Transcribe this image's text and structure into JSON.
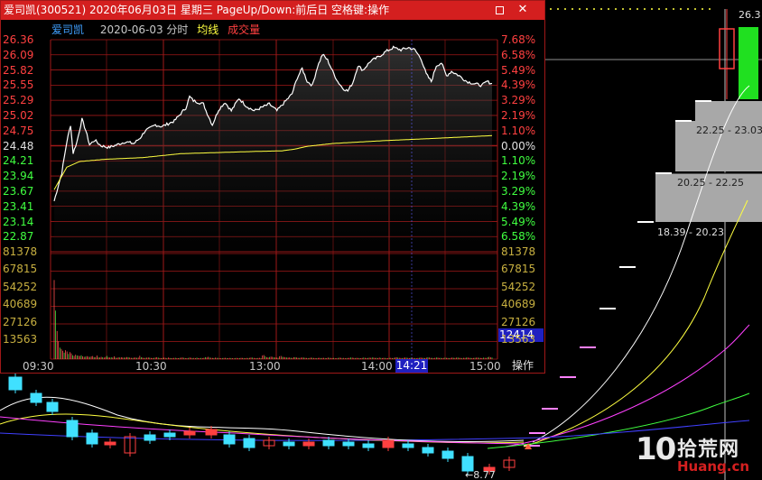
{
  "window": {
    "title": "爱司凯(300521) 2020年06月03日 星期三 PageUp/Down:前后日 空格键:操作",
    "restore_glyph": "",
    "close_glyph": "✕"
  },
  "legend": {
    "name": "爱司凯",
    "date": "2020-06-03 分时",
    "avg_label": "均线",
    "vol_label": "成交量"
  },
  "price_axis": {
    "prices": [
      "26.36",
      "26.09",
      "25.82",
      "25.55",
      "25.29",
      "25.02",
      "24.75",
      "24.48",
      "24.21",
      "23.94",
      "23.67",
      "23.41",
      "23.14",
      "22.87"
    ],
    "percents": [
      "7.68%",
      "6.58%",
      "5.49%",
      "4.39%",
      "3.29%",
      "2.19%",
      "1.10%",
      "0.00%",
      "1.10%",
      "2.19%",
      "3.29%",
      "4.39%",
      "5.49%",
      "6.58%"
    ],
    "base_price": 24.48
  },
  "volume_axis": {
    "labels": [
      "81378",
      "67815",
      "54252",
      "40689",
      "27126",
      "13563"
    ]
  },
  "time_axis": {
    "labels": [
      "09:30",
      "10:30",
      "13:00",
      "14:00",
      "15:00"
    ],
    "cursor_time": "14:21"
  },
  "cursor_value": "12414",
  "operate_button": "操作",
  "intraday": {
    "price_keypoints": [
      [
        0,
        23.5
      ],
      [
        3,
        23.75
      ],
      [
        6,
        24.0
      ],
      [
        10,
        24.55
      ],
      [
        13,
        24.85
      ],
      [
        15,
        24.35
      ],
      [
        18,
        24.55
      ],
      [
        22,
        24.95
      ],
      [
        25,
        24.75
      ],
      [
        28,
        24.5
      ],
      [
        32,
        24.58
      ],
      [
        37,
        24.48
      ],
      [
        43,
        24.45
      ],
      [
        50,
        24.5
      ],
      [
        56,
        24.55
      ],
      [
        63,
        24.52
      ],
      [
        68,
        24.62
      ],
      [
        72,
        24.75
      ],
      [
        75,
        24.78
      ],
      [
        80,
        24.85
      ],
      [
        85,
        24.82
      ],
      [
        95,
        24.92
      ],
      [
        100,
        25.05
      ],
      [
        104,
        25.15
      ],
      [
        107,
        25.35
      ],
      [
        110,
        25.28
      ],
      [
        114,
        25.25
      ],
      [
        118,
        25.22
      ],
      [
        120,
        25.1
      ],
      [
        125,
        24.85
      ],
      [
        130,
        25.12
      ],
      [
        135,
        25.25
      ],
      [
        140,
        25.1
      ],
      [
        146,
        25.32
      ],
      [
        152,
        25.18
      ],
      [
        158,
        25.1
      ],
      [
        163,
        25.15
      ],
      [
        170,
        25.22
      ],
      [
        176,
        25.1
      ],
      [
        182,
        25.25
      ],
      [
        188,
        25.4
      ],
      [
        192,
        25.68
      ],
      [
        196,
        25.85
      ],
      [
        200,
        25.62
      ],
      [
        204,
        25.55
      ],
      [
        208,
        25.88
      ],
      [
        212,
        26.1
      ],
      [
        216,
        26.0
      ],
      [
        220,
        25.8
      ],
      [
        224,
        25.62
      ],
      [
        228,
        25.5
      ],
      [
        232,
        25.45
      ],
      [
        236,
        25.6
      ],
      [
        240,
        25.9
      ],
      [
        244,
        25.82
      ],
      [
        250,
        25.98
      ],
      [
        256,
        26.05
      ],
      [
        262,
        26.15
      ],
      [
        268,
        26.22
      ],
      [
        274,
        26.18
      ],
      [
        280,
        26.22
      ],
      [
        285,
        26.18
      ],
      [
        290,
        26.02
      ],
      [
        294,
        25.75
      ],
      [
        298,
        25.62
      ],
      [
        302,
        25.9
      ],
      [
        306,
        25.95
      ],
      [
        310,
        25.72
      ],
      [
        314,
        25.8
      ],
      [
        320,
        25.72
      ],
      [
        326,
        25.62
      ],
      [
        332,
        25.58
      ],
      [
        338,
        25.55
      ],
      [
        342,
        25.62
      ],
      [
        346,
        25.58
      ]
    ],
    "avg_keypoints": [
      [
        0,
        23.7
      ],
      [
        5,
        23.9
      ],
      [
        10,
        24.1
      ],
      [
        20,
        24.2
      ],
      [
        40,
        24.24
      ],
      [
        70,
        24.27
      ],
      [
        100,
        24.34
      ],
      [
        130,
        24.36
      ],
      [
        160,
        24.38
      ],
      [
        180,
        24.39
      ],
      [
        190,
        24.42
      ],
      [
        200,
        24.47
      ],
      [
        220,
        24.52
      ],
      [
        260,
        24.57
      ],
      [
        300,
        24.61
      ],
      [
        346,
        24.66
      ]
    ],
    "volumes": [
      62000,
      38000,
      22000,
      14000,
      9000,
      8000,
      6500,
      5000,
      7000,
      6000,
      4000,
      5500,
      4500,
      3000,
      2500,
      3500,
      2800,
      2600,
      2400,
      3000,
      2200,
      1800,
      2000,
      2300,
      1900,
      1700,
      2100,
      2400,
      1500,
      1600,
      2800,
      1400,
      1300,
      1800,
      1500,
      1200,
      1700,
      2500,
      1400,
      1300,
      1500,
      1200,
      2200,
      1100,
      1000,
      1400,
      1300,
      1500,
      1200,
      1100,
      1300,
      1600,
      1400,
      1200,
      1000,
      900,
      1100,
      1300,
      1000,
      1200,
      2600,
      1400,
      1100,
      900,
      1000,
      1200,
      1300,
      1100,
      900,
      800,
      1000,
      1200,
      1500,
      1100,
      900,
      800,
      900,
      1100,
      1000,
      800,
      1200,
      900,
      700,
      800,
      900,
      1000,
      800,
      700,
      900,
      1100,
      1300,
      1000,
      800,
      700,
      900,
      1200,
      1000,
      800,
      900,
      700,
      1100,
      800,
      700,
      900,
      800,
      1000,
      1500,
      1200,
      1800,
      1300,
      1000,
      900,
      800,
      1100,
      1000,
      900,
      800,
      700,
      800,
      900,
      1000,
      800,
      700,
      900,
      800,
      700,
      600,
      800,
      900,
      700,
      800,
      1000,
      900,
      800,
      700,
      900,
      800,
      1000,
      1200,
      1100,
      900,
      800,
      700,
      900,
      1000,
      800,
      2800,
      3200,
      2200,
      1500,
      1200,
      1600,
      2000,
      1800,
      1400,
      1300,
      1100,
      1000,
      2200,
      2500,
      1800,
      1600,
      1400,
      1200,
      1100,
      1300,
      1000,
      900,
      1500,
      1400,
      1200,
      1000,
      900,
      1100,
      1300,
      1100,
      1000,
      900,
      800,
      900,
      1100,
      1000,
      900,
      800,
      700,
      900,
      1000,
      800,
      900,
      1000,
      800,
      700,
      1200,
      1000,
      900,
      800,
      900,
      700,
      800,
      900,
      1100,
      1000,
      800,
      900,
      700,
      800,
      900,
      1000,
      1300,
      1100,
      900,
      800,
      1000,
      900,
      800,
      700,
      900,
      1200,
      1000,
      800,
      900,
      1100,
      1000,
      1300,
      1100,
      900,
      1000,
      800,
      1200,
      900,
      800,
      1000,
      900,
      700,
      800,
      900,
      1000,
      800,
      900,
      1200,
      1500,
      1100,
      1000,
      900,
      800,
      1000,
      1200,
      1100,
      900,
      800,
      1000,
      1100,
      900,
      800,
      700,
      900,
      1000,
      1200,
      1000,
      900,
      800,
      1100,
      1400,
      1200,
      1000,
      900,
      800,
      1000,
      1200,
      1100,
      900,
      1000,
      800,
      900,
      1100,
      1000,
      900,
      800,
      900,
      1200,
      1000,
      900,
      1100,
      1300,
      1000,
      900,
      800,
      1000,
      900,
      1100,
      1200,
      1000,
      900,
      800,
      900,
      1000,
      1100,
      1200,
      1000,
      900,
      800,
      1100,
      1000,
      900,
      1500,
      1800,
      1400,
      1200
    ]
  },
  "background": {
    "price_top_label": "26.3",
    "low_label": "←8.77",
    "ranges": [
      "22.25 - 23.03",
      "20.25 - 22.25",
      "18.39 - 20.23"
    ]
  },
  "watermark": {
    "number": "10",
    "cn": "拾荒网",
    "en": "Huang.cn"
  },
  "colors": {
    "frame_red": "#a01818",
    "up": "#ff4040",
    "down": "#40ff40",
    "avg_line": "#ffff40",
    "accent_blue": "#2020c0"
  }
}
